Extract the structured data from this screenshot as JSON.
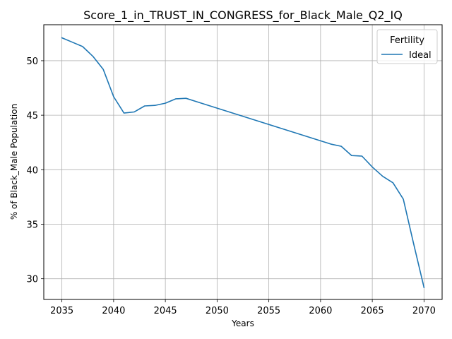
{
  "chart_data": {
    "type": "line",
    "title": "Score_1_in_TRUST_IN_CONGRESS_for_Black_Male_Q2_IQ",
    "xlabel": "Years",
    "ylabel": "% of Black_Male Population",
    "xlim": [
      2033.25,
      2071.75
    ],
    "ylim": [
      28.1,
      53.3
    ],
    "xticks": [
      2035,
      2040,
      2045,
      2050,
      2055,
      2060,
      2065,
      2070
    ],
    "yticks": [
      30,
      35,
      40,
      45,
      50
    ],
    "grid": true,
    "legend": {
      "title": "Fertility",
      "placement": "top-right"
    },
    "series": [
      {
        "name": "Ideal",
        "color": "#1f77b4",
        "x": [
          2035,
          2036,
          2037,
          2038,
          2039,
          2040,
          2041,
          2042,
          2043,
          2044,
          2045,
          2046,
          2047,
          2048,
          2049,
          2050,
          2051,
          2052,
          2053,
          2054,
          2055,
          2056,
          2057,
          2058,
          2059,
          2060,
          2061,
          2062,
          2063,
          2064,
          2065,
          2066,
          2067,
          2068,
          2069,
          2070
        ],
        "y": [
          52.1,
          51.7,
          51.3,
          50.4,
          49.2,
          46.7,
          45.2,
          45.3,
          45.85,
          45.9,
          46.1,
          46.5,
          46.55,
          46.25,
          45.95,
          45.65,
          45.35,
          45.05,
          44.75,
          44.45,
          44.15,
          43.85,
          43.55,
          43.25,
          42.95,
          42.65,
          42.35,
          42.15,
          41.3,
          41.25,
          40.25,
          39.4,
          38.8,
          37.3,
          33.2,
          29.2
        ]
      }
    ]
  }
}
